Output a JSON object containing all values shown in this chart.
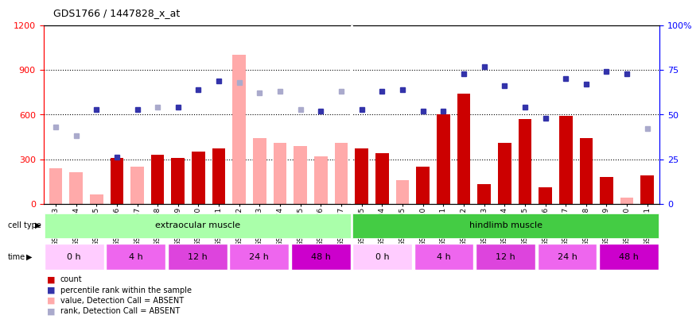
{
  "title": "GDS1766 / 1447828_x_at",
  "samples": [
    "GSM16963",
    "GSM16964",
    "GSM16965",
    "GSM16966",
    "GSM16967",
    "GSM16968",
    "GSM16969",
    "GSM16970",
    "GSM16971",
    "GSM16972",
    "GSM16973",
    "GSM16974",
    "GSM16975",
    "GSM16976",
    "GSM16977",
    "GSM16995",
    "GSM17004",
    "GSM17005",
    "GSM17010",
    "GSM17011",
    "GSM17012",
    "GSM17013",
    "GSM17014",
    "GSM17015",
    "GSM17016",
    "GSM17017",
    "GSM17018",
    "GSM17019",
    "GSM17020",
    "GSM17021"
  ],
  "bar_values": [
    240,
    210,
    60,
    310,
    250,
    330,
    310,
    350,
    370,
    1000,
    440,
    410,
    390,
    320,
    410,
    370,
    340,
    160,
    250,
    600,
    740,
    130,
    410,
    570,
    110,
    590,
    440,
    180,
    40,
    190
  ],
  "bar_absent": [
    true,
    true,
    true,
    false,
    true,
    false,
    false,
    false,
    false,
    true,
    true,
    true,
    true,
    true,
    true,
    false,
    false,
    true,
    false,
    false,
    false,
    false,
    false,
    false,
    false,
    false,
    false,
    false,
    true,
    false
  ],
  "dot_values_pct": [
    43,
    38,
    53,
    26,
    53,
    54,
    54,
    64,
    69,
    68,
    62,
    63,
    53,
    52,
    63,
    53,
    63,
    64,
    52,
    52,
    73,
    77,
    66,
    54,
    48,
    70,
    67,
    74,
    73,
    42
  ],
  "dot_absent": [
    true,
    true,
    false,
    false,
    false,
    true,
    false,
    false,
    false,
    true,
    true,
    true,
    true,
    false,
    true,
    false,
    false,
    false,
    false,
    false,
    false,
    false,
    false,
    false,
    false,
    false,
    false,
    false,
    false,
    true
  ],
  "ylim_left": [
    0,
    1200
  ],
  "ylim_right": [
    0,
    100
  ],
  "yticks_left": [
    0,
    300,
    600,
    900,
    1200
  ],
  "yticks_right": [
    0,
    25,
    50,
    75,
    100
  ],
  "bar_color_present": "#cc0000",
  "bar_color_absent": "#ffaaaa",
  "dot_color_present": "#3333aa",
  "dot_color_absent": "#aaaacc",
  "plot_bg": "white",
  "fig_bg": "white",
  "spine_color_left": "red",
  "spine_color_right": "blue"
}
